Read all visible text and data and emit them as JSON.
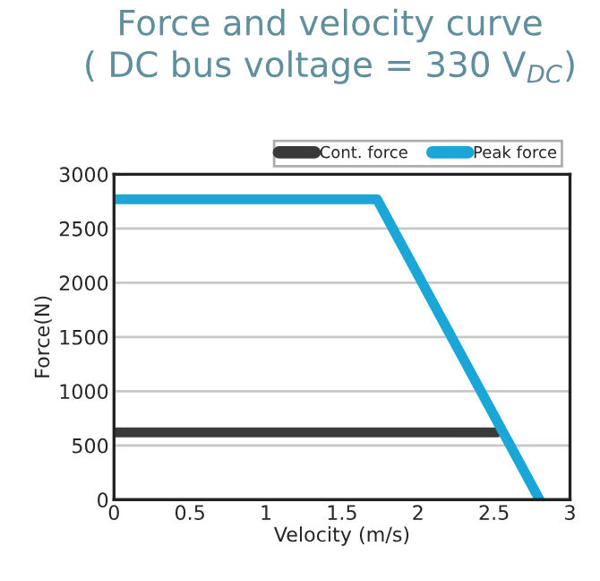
{
  "chart_data": {
    "type": "line",
    "title": "Force and velocity curve\n( DC bus voltage = 330 V$_{DC}$)",
    "xlabel": "Velocity (m/s)",
    "ylabel": "Force(N)",
    "series": [
      {
        "name": "Cont. force",
        "color": "#3a3a3a",
        "x": [
          0,
          2.52
        ],
        "values": [
          620,
          620
        ]
      },
      {
        "name": "Peak force",
        "color": "#1aa7d8",
        "x": [
          0,
          1.73,
          2.8
        ],
        "values": [
          2770,
          2770,
          0
        ]
      }
    ],
    "xlim": [
      0,
      3
    ],
    "xticks": [
      0,
      0.5,
      1,
      1.5,
      2,
      2.5,
      3
    ],
    "ylim": [
      0,
      3000
    ],
    "yticks": [
      0,
      500,
      1000,
      1500,
      2000,
      2500,
      3000
    ],
    "grid": "y",
    "legend": "top right",
    "line_style": "solid",
    "marker": "none"
  }
}
